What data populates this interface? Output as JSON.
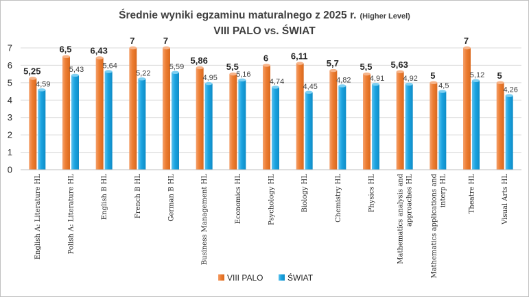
{
  "chart_data": {
    "type": "bar",
    "title": "Średnie wyniki egzaminu maturalnego z 2025 r.",
    "title_note": "(Higher Level)",
    "subtitle": "VIII PALO vs. ŚWIAT",
    "ylim": [
      0,
      7
    ],
    "y_ticks": [
      "0",
      "1",
      "2",
      "3",
      "4",
      "5",
      "6",
      "7"
    ],
    "grid": true,
    "legend_position": "bottom",
    "categories": [
      [
        "English A: Literature HL"
      ],
      [
        "Polish A: Literature HL"
      ],
      [
        "English B HL"
      ],
      [
        "French B HL"
      ],
      [
        "German B HL"
      ],
      [
        "Business Management HL"
      ],
      [
        "Economics HL"
      ],
      [
        "Psychology HL"
      ],
      [
        "Biology HL"
      ],
      [
        "Chemistry HL"
      ],
      [
        "Physics HL"
      ],
      [
        "Mathematics analysis and",
        "approaches HL"
      ],
      [
        "Mathematics applications and",
        "interp HL"
      ],
      [
        "Theatre HL"
      ],
      [
        "Visual Arts HL"
      ]
    ],
    "series": [
      {
        "name": "VIII PALO",
        "color": "#ED7D31",
        "values": [
          5.25,
          6.5,
          6.43,
          7,
          7,
          5.86,
          5.5,
          6,
          6.11,
          5.7,
          5.5,
          5.63,
          5,
          7,
          5
        ],
        "labels": [
          "5,25",
          "6,5",
          "6,43",
          "7",
          "7",
          "5,86",
          "5,5",
          "6",
          "6,11",
          "5,7",
          "5,5",
          "5,63",
          "5",
          "7",
          "5"
        ]
      },
      {
        "name": "ŚWIAT",
        "color": "#1AA3E0",
        "values": [
          4.59,
          5.43,
          5.64,
          5.22,
          5.59,
          4.95,
          5.16,
          4.74,
          4.45,
          4.82,
          4.91,
          4.92,
          4.5,
          5.12,
          4.26
        ],
        "labels": [
          "4,59",
          "5,43",
          "5,64",
          "5,22",
          "5,59",
          "4,95",
          "5,16",
          "4,74",
          "4,45",
          "4,82",
          "4,91",
          "4,92",
          "4,5",
          "5,12",
          "4,26"
        ]
      }
    ]
  }
}
